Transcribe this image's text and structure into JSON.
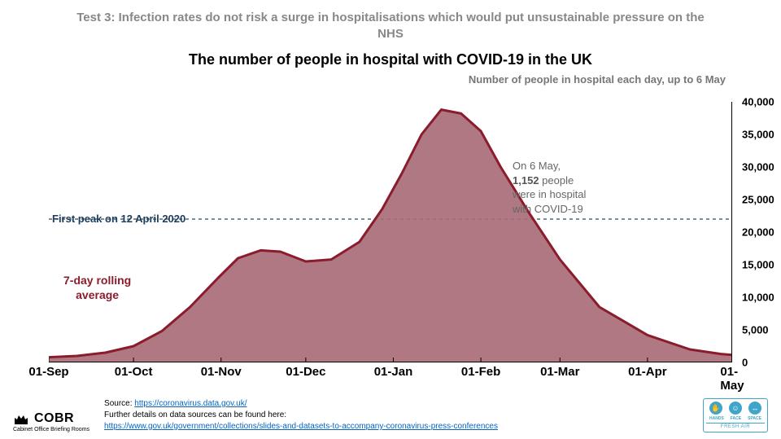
{
  "header": {
    "test_label": "Test 3: Infection rates do not risk a surge in hospitalisations which would put unsustainable pressure on the NHS",
    "title": "The number of people in hospital with COVID-19 in the UK",
    "subtitle": "Number of people in hospital each day, up to 6 May"
  },
  "chart": {
    "type": "area",
    "background_color": "#ffffff",
    "area_fill": "#a86c77",
    "area_fill_opacity": 0.92,
    "line_color": "#8a1c2c",
    "line_width": 3,
    "first_peak_line": {
      "value": 22000,
      "color": "#4a6a7a",
      "dash": "4,4",
      "width": 1.5
    },
    "x": {
      "domain_days": 242,
      "ticks": [
        "01-Sep",
        "01-Oct",
        "01-Nov",
        "01-Dec",
        "01-Jan",
        "01-Feb",
        "01-Mar",
        "01-Apr",
        "01-May"
      ],
      "tick_days": [
        0,
        30,
        61,
        91,
        122,
        153,
        181,
        212,
        242
      ]
    },
    "y": {
      "min": 0,
      "max": 40000,
      "step": 5000,
      "ticks": [
        0,
        5000,
        10000,
        15000,
        20000,
        25000,
        30000,
        35000,
        40000
      ]
    },
    "series_days": [
      0,
      10,
      20,
      30,
      40,
      50,
      60,
      67,
      75,
      82,
      91,
      100,
      110,
      118,
      125,
      132,
      139,
      146,
      153,
      160,
      170,
      181,
      195,
      212,
      227,
      238,
      242
    ],
    "series_values": [
      800,
      1000,
      1500,
      2500,
      4800,
      8500,
      13000,
      16000,
      17200,
      17000,
      15500,
      15800,
      18500,
      23500,
      29000,
      35000,
      38800,
      38200,
      35500,
      30000,
      23000,
      15800,
      8500,
      4200,
      2000,
      1300,
      1152
    ],
    "first_peak_label": "First peak on 12 April 2020",
    "rolling_label_line1": "7-day rolling",
    "rolling_label_line2": "average",
    "annotation": {
      "line1": "On 6 May,",
      "bold": "1,152",
      "line2_rest": " people",
      "line3": "were in hospital",
      "line4": "with COVID-19"
    },
    "title_fontsize": 18,
    "axis_label_fontsize": 15
  },
  "footer": {
    "cobr_name": "COBR",
    "cobr_sub": "Cabinet Office Briefing Rooms",
    "source_prefix": "Source: ",
    "source_link": "https://coronavirus.data.gov.uk/",
    "details_text": "Further details on data sources can be found here:",
    "details_link": "https://www.gov.uk/government/collections/slides-and-datasets-to-accompany-coronavirus-press-conferences",
    "hfs": {
      "hands": "HANDS",
      "face": "FACE",
      "space": "SPACE",
      "bottom": "FRESH AIR"
    }
  }
}
